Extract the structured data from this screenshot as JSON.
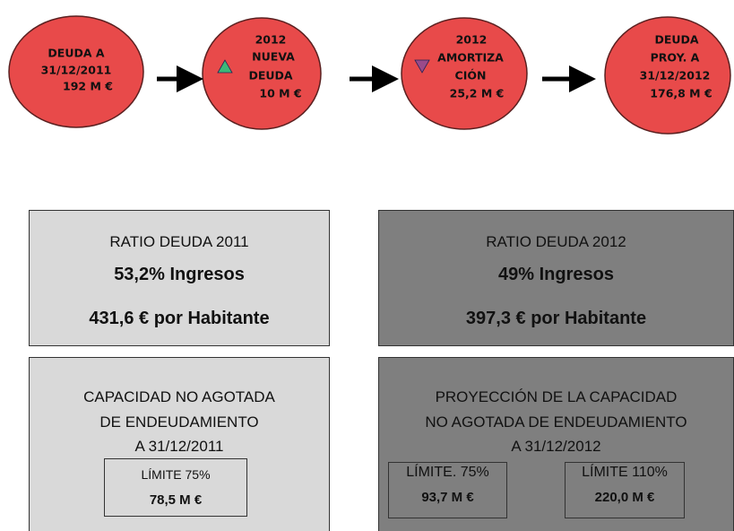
{
  "nodes": [
    {
      "lines": [
        "DEUDA A",
        "31/12/2011",
        "192 M €"
      ]
    },
    {
      "lines": [
        "2012",
        "NUEVA",
        "DEUDA",
        "10 M €"
      ]
    },
    {
      "lines": [
        "2012",
        "AMORTIZA",
        "CIÓN",
        "25,2 M €"
      ]
    },
    {
      "lines": [
        "DEUDA",
        "PROY. A",
        "31/12/2012",
        "176,8 M €"
      ]
    }
  ],
  "ratios": [
    {
      "title": "RATIO DEUDA 2011",
      "income": "53,2% Ingresos",
      "per_capita": "431,6 € por Habitante"
    },
    {
      "title": "RATIO DEUDA 2012",
      "income": "49% Ingresos",
      "per_capita": "397,3  € por Habitante"
    }
  ],
  "capacity": [
    {
      "title_lines": [
        "CAPACIDAD NO AGOTADA",
        "DE ENDEUDAMIENTO",
        "A 31/12/2011"
      ],
      "limits": [
        {
          "label": "LÍMITE 75%",
          "value": "78,5 M €"
        }
      ]
    },
    {
      "title_lines": [
        "PROYECCIÓN DE LA CAPACIDAD",
        "NO AGOTADA DE ENDEUDAMIENTO",
        "A 31/12/2012"
      ],
      "limits": [
        {
          "label": "LÍMITE. 75%",
          "value": "93,7 M €"
        },
        {
          "label": "LÍMITE 110%",
          "value": "220,0 M €"
        }
      ]
    }
  ]
}
